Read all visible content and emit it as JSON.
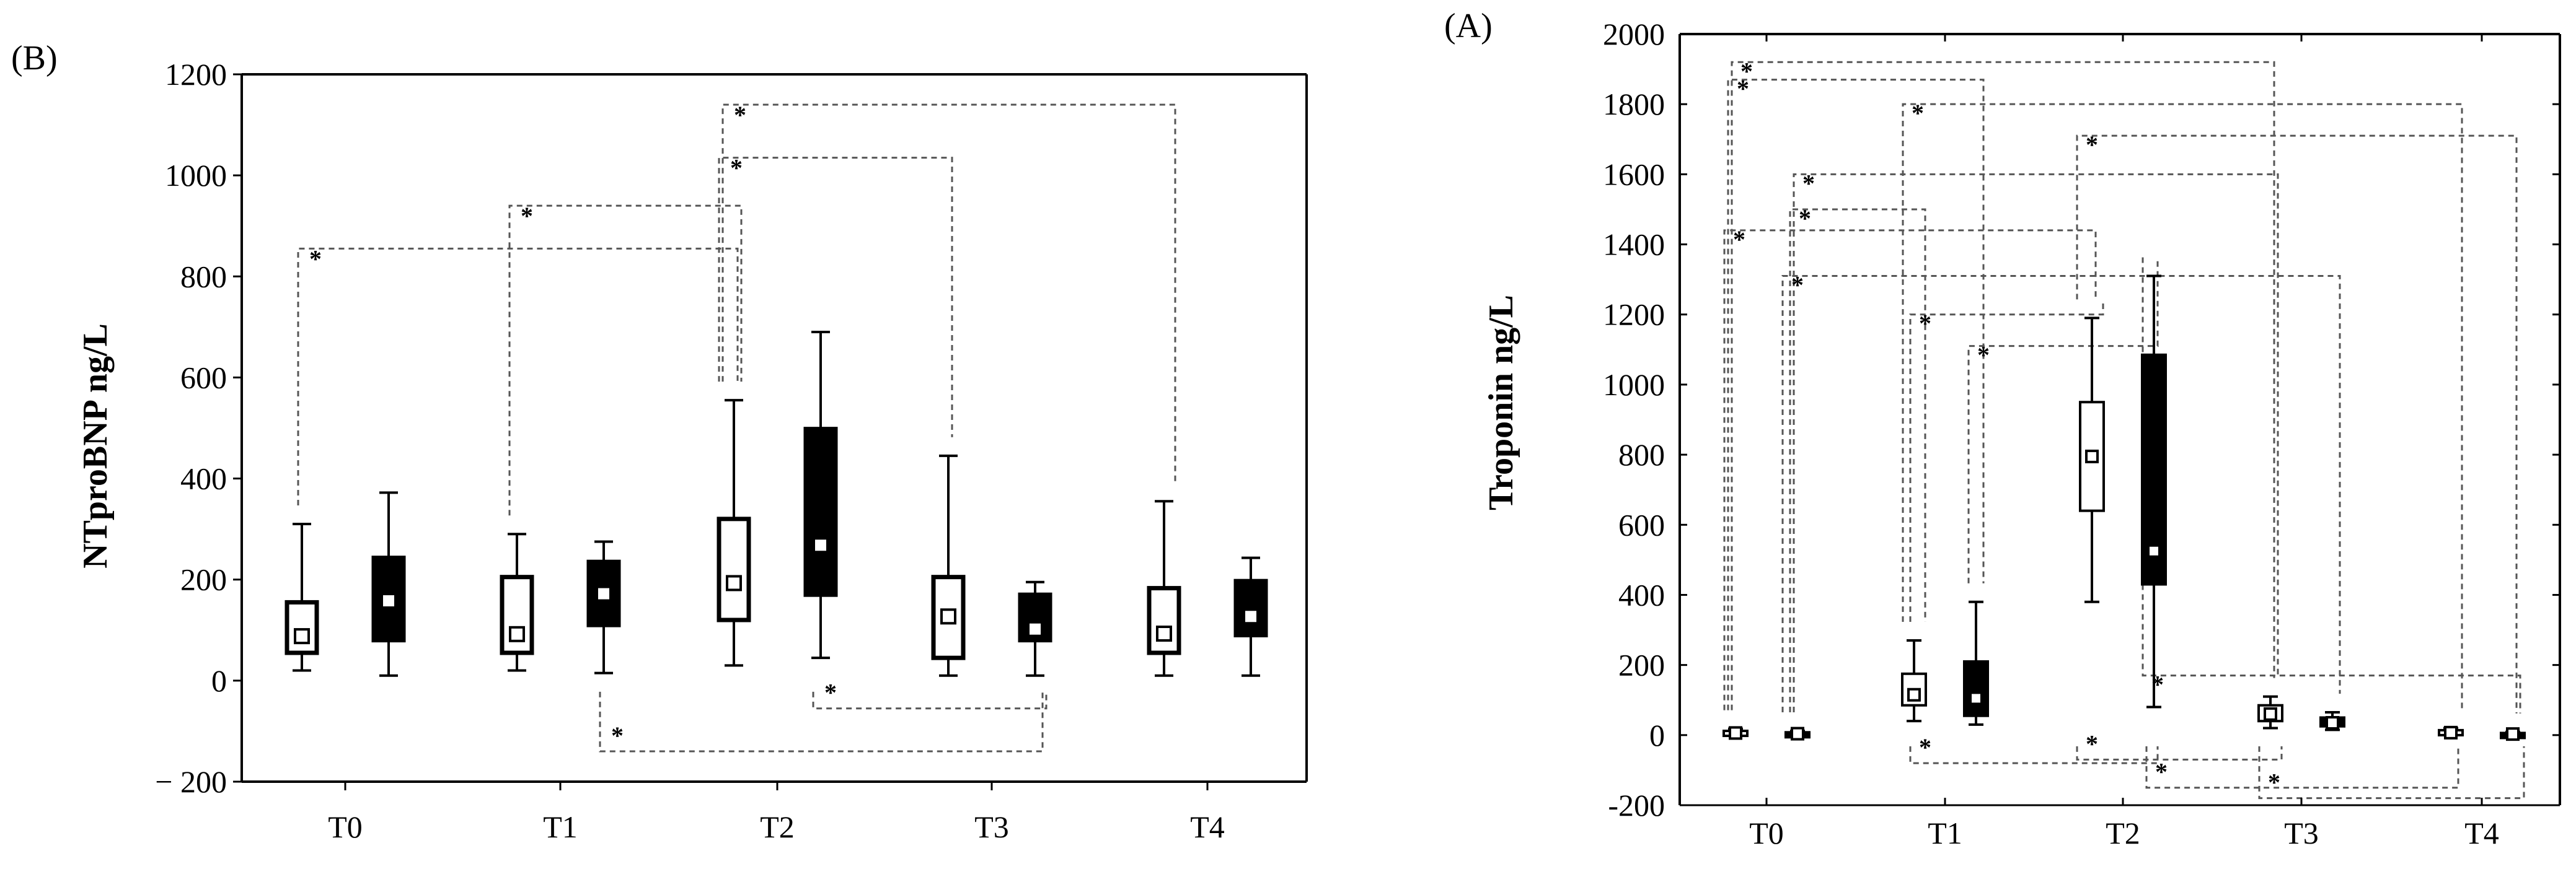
{
  "chart_data": [
    {
      "panel": "(B)",
      "type": "boxplot",
      "ylabel": "NTproBNP ng/L",
      "xlabel": "",
      "title": "",
      "categories": [
        "T0",
        "T1",
        "T2",
        "T3",
        "T4"
      ],
      "ylim": [
        -200,
        1200
      ],
      "yticks": [
        -200,
        0,
        200,
        400,
        600,
        800,
        1000,
        1200
      ],
      "ytick_labels": [
        "− 200",
        "0",
        "200",
        "400",
        "600",
        "800",
        "1000",
        "1200"
      ],
      "grid": false,
      "series": [
        {
          "style": "white boxes",
          "boxes": [
            {
              "category": "T0",
              "min": 20,
              "q1": 55,
              "median": 88,
              "q3": 155,
              "max": 310
            },
            {
              "category": "T1",
              "min": 20,
              "q1": 55,
              "median": 92,
              "q3": 205,
              "max": 290
            },
            {
              "category": "T2",
              "min": 30,
              "q1": 120,
              "median": 193,
              "q3": 320,
              "max": 555
            },
            {
              "category": "T3",
              "min": 10,
              "q1": 45,
              "median": 127,
              "q3": 205,
              "max": 445
            },
            {
              "category": "T4",
              "min": 10,
              "q1": 55,
              "median": 93,
              "q3": 183,
              "max": 355
            }
          ]
        },
        {
          "style": "black boxes",
          "boxes": [
            {
              "category": "T0",
              "min": 10,
              "q1": 80,
              "median": 158,
              "q3": 243,
              "max": 372
            },
            {
              "category": "T1",
              "min": 15,
              "q1": 110,
              "median": 172,
              "q3": 235,
              "max": 275
            },
            {
              "category": "T2",
              "min": 45,
              "q1": 170,
              "median": 268,
              "q3": 498,
              "max": 690
            },
            {
              "category": "T3",
              "min": 10,
              "q1": 80,
              "median": 102,
              "q3": 170,
              "max": 195
            },
            {
              "category": "T4",
              "min": 10,
              "q1": 90,
              "median": 127,
              "q3": 197,
              "max": 243
            }
          ]
        }
      ],
      "annotations": [
        {
          "label": "*",
          "level": 855,
          "from": "T0 white",
          "to": "T2 white"
        },
        {
          "label": "*",
          "level": 940,
          "from": "T1 white",
          "to": "T2 white"
        },
        {
          "label": "*",
          "level": 1140,
          "from": "T2 white",
          "to": "T4 white"
        },
        {
          "label": "*",
          "level": 1035,
          "from": "T2 white",
          "to": "T3 white"
        },
        {
          "label": "*",
          "level": -140,
          "from": "T1 black",
          "to": "T3 black"
        },
        {
          "label": "*",
          "level": -55,
          "from": "T2 black",
          "to": "T3 black"
        }
      ]
    },
    {
      "panel": "(A)",
      "type": "boxplot",
      "ylabel": "Troponin ng/L",
      "xlabel": "",
      "title": "",
      "categories": [
        "T0",
        "T1",
        "T2",
        "T3",
        "T4"
      ],
      "ylim": [
        -200,
        2000
      ],
      "yticks": [
        -200,
        0,
        200,
        400,
        600,
        800,
        1000,
        1200,
        1400,
        1600,
        1800,
        2000
      ],
      "ytick_labels": [
        "-200",
        "0",
        "200",
        "400",
        "600",
        "800",
        "1000",
        "1200",
        "1400",
        "1600",
        "1800",
        "2000"
      ],
      "grid": false,
      "series": [
        {
          "style": "white boxes",
          "boxes": [
            {
              "category": "T0",
              "min": 0,
              "q1": 2,
              "median": 6,
              "q3": 12,
              "max": 18
            },
            {
              "category": "T1",
              "min": 40,
              "q1": 85,
              "median": 115,
              "q3": 175,
              "max": 270
            },
            {
              "category": "T2",
              "min": 380,
              "q1": 640,
              "median": 795,
              "q3": 950,
              "max": 1190
            },
            {
              "category": "T3",
              "min": 20,
              "q1": 40,
              "median": 60,
              "q3": 85,
              "max": 110
            },
            {
              "category": "T4",
              "min": 0,
              "q1": 2,
              "median": 7,
              "q3": 14,
              "max": 20
            }
          ]
        },
        {
          "style": "black boxes",
          "boxes": [
            {
              "category": "T0",
              "min": 0,
              "q1": 1,
              "median": 4,
              "q3": 8,
              "max": 12
            },
            {
              "category": "T1",
              "min": 30,
              "q1": 55,
              "median": 105,
              "q3": 210,
              "max": 380
            },
            {
              "category": "T2",
              "min": 80,
              "q1": 430,
              "median": 525,
              "q3": 1085,
              "max": 1310
            },
            {
              "category": "T3",
              "min": 15,
              "q1": 25,
              "median": 35,
              "q3": 50,
              "max": 65
            },
            {
              "category": "T4",
              "min": 0,
              "q1": 1,
              "median": 3,
              "q3": 6,
              "max": 9
            }
          ]
        }
      ],
      "annotations": [
        {
          "label": "*",
          "level": 1920,
          "from": "T0 white",
          "to": "T3 white"
        },
        {
          "label": "*",
          "level": 1870,
          "from": "T0 white",
          "to": "T1 black"
        },
        {
          "label": "*",
          "level": 1800,
          "from": "T1 white",
          "to": "T4 white"
        },
        {
          "label": "*",
          "level": 1710,
          "from": "T2 white",
          "to": "T4 black"
        },
        {
          "label": "*",
          "level": 1600,
          "from": "T0 black",
          "to": "T3 white"
        },
        {
          "label": "*",
          "level": 1500,
          "from": "T0 black",
          "to": "T1 white"
        },
        {
          "label": "*",
          "level": 1440,
          "from": "T0 white",
          "to": "T2 white"
        },
        {
          "label": "*",
          "level": 1310,
          "from": "T0 black",
          "to": "T3 black"
        },
        {
          "label": "*",
          "level": 1200,
          "from": "T1 white",
          "to": "T2 white"
        },
        {
          "label": "*",
          "level": 1110,
          "from": "T1 black",
          "to": "T2 black"
        },
        {
          "label": "*",
          "level": 170,
          "from": "T2 black",
          "to": "T4 black"
        },
        {
          "label": "*",
          "level": -70,
          "from": "T2 white",
          "to": "T3 white"
        },
        {
          "label": "*",
          "level": -80,
          "from": "T1 white",
          "to": "T2 black"
        },
        {
          "label": "*",
          "level": -150,
          "from": "T2 black",
          "to": "T4 white"
        },
        {
          "label": "*",
          "level": -180,
          "from": "T3 white",
          "to": "T4 black"
        }
      ]
    }
  ]
}
